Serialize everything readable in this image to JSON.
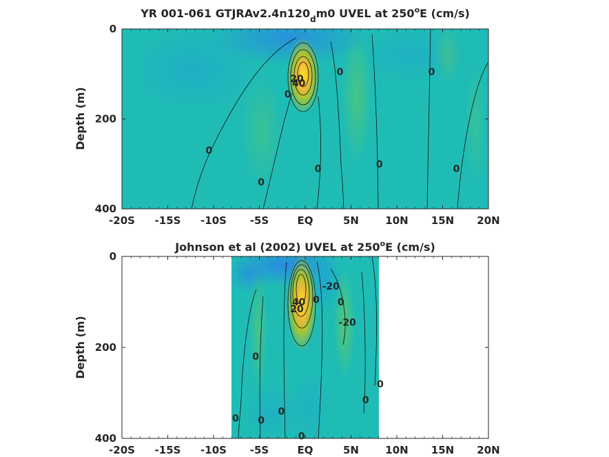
{
  "chart_data": [
    {
      "type": "heatmap",
      "title": "YR 001-061 GTJRAv2.4n120",
      "title_subscript": "d",
      "title_suffix": "m0 UVEL at 250",
      "title_superscript": "o",
      "title_end": "E (cm/s)",
      "ylabel": "Depth (m)",
      "xlabel": "",
      "xticks": [
        "-20S",
        "-15S",
        "-10S",
        "-5S",
        "EQ",
        "5N",
        "10N",
        "15N",
        "20N"
      ],
      "xtick_values": [
        -20,
        -15,
        -10,
        -5,
        0,
        5,
        10,
        15,
        20
      ],
      "yticks": [
        "0",
        "200",
        "400"
      ],
      "ytick_values": [
        0,
        200,
        400
      ],
      "xlim": [
        -20,
        20
      ],
      "ylim": [
        0,
        400
      ],
      "y_reversed": true,
      "data_extent_lat": [
        -20,
        20
      ],
      "colormap": "parula",
      "core": {
        "lat": -0.2,
        "depth": 100,
        "peak": 80
      },
      "contour_labels": [
        {
          "text": "0",
          "lat": -10.5,
          "depth": 270
        },
        {
          "text": "0",
          "lat": -4.8,
          "depth": 340
        },
        {
          "text": "0",
          "lat": 1.4,
          "depth": 310
        },
        {
          "text": "0",
          "lat": 3.8,
          "depth": 95
        },
        {
          "text": "0",
          "lat": 8.1,
          "depth": 300
        },
        {
          "text": "0",
          "lat": 13.8,
          "depth": 95
        },
        {
          "text": "0",
          "lat": 16.5,
          "depth": 310
        },
        {
          "text": "0",
          "lat": -1.9,
          "depth": 145
        },
        {
          "text": "20",
          "lat": -0.9,
          "depth": 110
        },
        {
          "text": "40",
          "lat": -0.7,
          "depth": 120
        }
      ]
    },
    {
      "type": "heatmap",
      "title": "Johnson et al (2002) UVEL at 250",
      "title_superscript": "o",
      "title_end": "E (cm/s)",
      "ylabel": "Depth (m)",
      "xlabel": "",
      "xticks": [
        "-20S",
        "-15S",
        "-10S",
        "-5S",
        "EQ",
        "5N",
        "10N",
        "15N",
        "20N"
      ],
      "xtick_values": [
        -20,
        -15,
        -10,
        -5,
        0,
        5,
        10,
        15,
        20
      ],
      "yticks": [
        "0",
        "200",
        "400"
      ],
      "ytick_values": [
        0,
        200,
        400
      ],
      "xlim": [
        -20,
        20
      ],
      "ylim": [
        0,
        400
      ],
      "y_reversed": true,
      "data_extent_lat": [
        -8,
        8
      ],
      "colormap": "parula",
      "core": {
        "lat": -0.3,
        "depth": 75,
        "peak": 80
      },
      "contour_labels": [
        {
          "text": "0",
          "lat": -5.4,
          "depth": 220
        },
        {
          "text": "0",
          "lat": -7.6,
          "depth": 355
        },
        {
          "text": "0",
          "lat": -4.8,
          "depth": 360
        },
        {
          "text": "0",
          "lat": -2.6,
          "depth": 340
        },
        {
          "text": "0",
          "lat": -0.4,
          "depth": 395
        },
        {
          "text": "0",
          "lat": 3.9,
          "depth": 100
        },
        {
          "text": "0",
          "lat": 6.6,
          "depth": 315
        },
        {
          "text": "0",
          "lat": 8.2,
          "depth": 280
        },
        {
          "text": "-20",
          "lat": 2.8,
          "depth": 65
        },
        {
          "text": "-20",
          "lat": 4.6,
          "depth": 145
        },
        {
          "text": "0",
          "lat": 1.2,
          "depth": 95
        },
        {
          "text": "40",
          "lat": -0.7,
          "depth": 100
        },
        {
          "text": "20",
          "lat": -0.9,
          "depth": 115
        }
      ]
    }
  ]
}
